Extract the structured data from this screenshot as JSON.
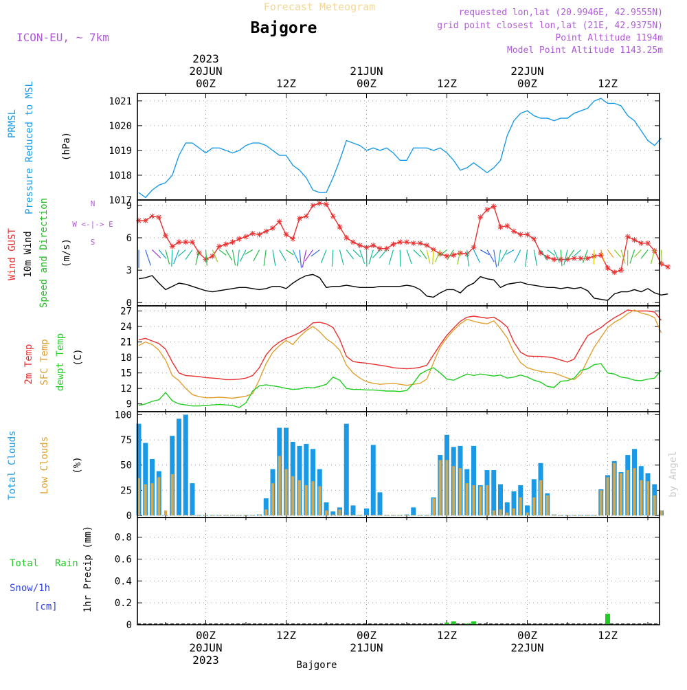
{
  "header": {
    "supertitle": "Forecast Meteogram",
    "title": "Bajgore",
    "model": "ICON-EU, ~ 7km",
    "requested": "requested lon,lat (20.9946E, 42.9555N)",
    "gridpoint": "grid point closest lon,lat (21E, 42.9375N)",
    "altitude": "Point Altitude 1194m",
    "model_altitude": "Model Point Altitude 1143.25m",
    "footer": "Bajgore",
    "credit": "by Angel"
  },
  "time_axis": {
    "top": [
      {
        "i": 10,
        "lines": [
          "2023",
          "20JUN",
          "00Z"
        ]
      },
      {
        "i": 22,
        "lines": [
          "12Z"
        ]
      },
      {
        "i": 34,
        "lines": [
          "21JUN",
          "00Z"
        ]
      },
      {
        "i": 46,
        "lines": [
          "12Z"
        ]
      },
      {
        "i": 58,
        "lines": [
          "22JUN",
          "00Z"
        ]
      },
      {
        "i": 70,
        "lines": [
          "12Z"
        ]
      }
    ],
    "bottom": [
      {
        "i": 10,
        "lines": [
          "00Z",
          "20JUN",
          "2023"
        ]
      },
      {
        "i": 22,
        "lines": [
          "12Z"
        ]
      },
      {
        "i": 34,
        "lines": [
          "00Z",
          "21JUN"
        ]
      },
      {
        "i": 46,
        "lines": [
          "12Z"
        ]
      },
      {
        "i": 58,
        "lines": [
          "00Z",
          "22JUN"
        ]
      },
      {
        "i": 70,
        "lines": [
          "12Z"
        ]
      }
    ]
  },
  "colors": {
    "pressure": "#1a9ae6",
    "gust": "#e83030",
    "wind": "#000000",
    "dir": "#22bb22",
    "temp": "#e83030",
    "sfc": "#e0a030",
    "dew": "#22cc22",
    "total_clouds": "#1a9ae6",
    "low_clouds": "#d4a850",
    "rain": "#22cc22",
    "snow": "#3344dd",
    "purple": "#b05ad8"
  },
  "panel_labels": {
    "pressure": [
      "PRMSL",
      "Pressure Reduced to MSL",
      "(hPa)"
    ],
    "wind": [
      "Wind GUST",
      "10m Wind",
      "Speed and Direction",
      "(m/s)"
    ],
    "compass": [
      "N",
      "W <-|-> E",
      "S"
    ],
    "temp": [
      "2m Temp",
      "SFC Temp",
      "dewpt Temp",
      "(C)"
    ],
    "clouds": [
      "Total Clouds",
      "Low Clouds",
      "(%)"
    ],
    "precip": [
      "Total",
      "Rain",
      "Snow/1h",
      "[cm]",
      "1hr Precip (mm)"
    ]
  },
  "chart_data": [
    {
      "type": "line",
      "panel": "pressure",
      "ylim": [
        1017,
        1021.3
      ],
      "yticks": [
        1017,
        1018,
        1019,
        1020,
        1021
      ],
      "series": [
        {
          "name": "PRMSL",
          "values": [
            1017.3,
            1017.1,
            1017.4,
            1017.6,
            1017.7,
            1018.0,
            1018.8,
            1019.3,
            1019.3,
            1019.1,
            1018.9,
            1019.1,
            1019.1,
            1019.0,
            1018.9,
            1019.0,
            1019.2,
            1019.3,
            1019.3,
            1019.2,
            1019.0,
            1018.8,
            1018.8,
            1018.4,
            1018.2,
            1017.9,
            1017.4,
            1017.3,
            1017.3,
            1017.9,
            1018.6,
            1019.4,
            1019.3,
            1019.2,
            1019.0,
            1019.1,
            1019.0,
            1019.1,
            1018.9,
            1018.6,
            1018.6,
            1019.1,
            1019.1,
            1019.1,
            1019.0,
            1019.1,
            1018.9,
            1018.6,
            1018.2,
            1018.3,
            1018.5,
            1018.3,
            1018.1,
            1018.3,
            1018.6,
            1019.6,
            1020.2,
            1020.5,
            1020.6,
            1020.4,
            1020.3,
            1020.3,
            1020.2,
            1020.3,
            1020.3,
            1020.5,
            1020.6,
            1020.7,
            1021.0,
            1021.1,
            1020.9,
            1020.9,
            1020.8,
            1020.4,
            1020.2,
            1019.8,
            1019.4,
            1019.2,
            1019.5
          ]
        }
      ]
    },
    {
      "type": "line",
      "panel": "wind",
      "ylim": [
        -0.3,
        9.5
      ],
      "yticks": [
        0,
        3,
        6,
        9
      ],
      "series": [
        {
          "name": "Wind GUST",
          "values": [
            7.6,
            7.6,
            8.0,
            7.9,
            6.2,
            5.2,
            5.6,
            5.6,
            5.6,
            4.6,
            4.0,
            4.3,
            5.2,
            5.4,
            5.6,
            5.9,
            6.1,
            6.4,
            6.3,
            6.6,
            6.9,
            7.5,
            6.3,
            5.9,
            7.8,
            8.0,
            9.0,
            9.2,
            9.1,
            8.0,
            7.0,
            6.0,
            5.6,
            5.3,
            5.1,
            5.3,
            5.0,
            5.0,
            5.4,
            5.6,
            5.6,
            5.5,
            5.5,
            5.3,
            4.9,
            4.5,
            4.3,
            4.4,
            4.6,
            4.5,
            5.1,
            7.9,
            8.6,
            8.9,
            7.0,
            7.1,
            6.6,
            6.3,
            6.3,
            5.9,
            4.6,
            4.2,
            4.0,
            4.0,
            4.0,
            4.1,
            4.1,
            4.1,
            4.3,
            4.4,
            3.2,
            2.8,
            3.0,
            6.1,
            5.8,
            5.5,
            5.5,
            4.8,
            3.6,
            3.3
          ]
        },
        {
          "name": "10m Wind",
          "values": [
            2.2,
            2.3,
            2.5,
            1.8,
            1.2,
            1.5,
            1.8,
            1.7,
            1.5,
            1.3,
            1.1,
            1.0,
            1.1,
            1.2,
            1.3,
            1.4,
            1.4,
            1.3,
            1.2,
            1.3,
            1.5,
            1.5,
            1.3,
            1.8,
            2.2,
            2.5,
            2.6,
            2.3,
            1.4,
            1.5,
            1.5,
            1.6,
            1.5,
            1.4,
            1.4,
            1.4,
            1.5,
            1.5,
            1.5,
            1.5,
            1.6,
            1.5,
            1.2,
            0.6,
            0.5,
            0.9,
            1.2,
            1.2,
            0.9,
            1.5,
            1.8,
            2.4,
            2.2,
            2.1,
            1.4,
            1.7,
            1.8,
            1.9,
            1.7,
            1.6,
            1.5,
            1.4,
            1.4,
            1.3,
            1.4,
            1.3,
            1.4,
            1.1,
            0.4,
            0.3,
            0.2,
            0.8,
            1.0,
            1.0,
            1.2,
            1.0,
            1.3,
            0.9,
            0.7,
            0.8
          ]
        }
      ]
    },
    {
      "type": "line",
      "panel": "temperature",
      "ylim": [
        7.5,
        28
      ],
      "yticks": [
        9,
        12,
        15,
        18,
        21,
        24,
        27
      ],
      "series": [
        {
          "name": "2m Temp",
          "values": [
            21.4,
            21.7,
            21.2,
            20.7,
            19.6,
            17.1,
            15.0,
            14.5,
            14.4,
            14.3,
            14.1,
            14.0,
            13.9,
            13.7,
            13.7,
            13.8,
            14.0,
            14.5,
            16.0,
            18.5,
            20.0,
            21.0,
            21.7,
            22.2,
            22.8,
            23.6,
            24.7,
            24.8,
            24.5,
            23.8,
            21.5,
            18.2,
            17.2,
            17.0,
            16.9,
            16.7,
            16.5,
            16.3,
            16.0,
            15.9,
            15.8,
            15.9,
            16.1,
            16.5,
            18.5,
            20.5,
            22.3,
            23.7,
            25.0,
            25.8,
            26.0,
            25.8,
            25.6,
            25.8,
            25.0,
            23.9,
            21.0,
            19.0,
            18.3,
            18.2,
            18.2,
            18.1,
            17.9,
            17.5,
            17.1,
            17.7,
            20.0,
            22.2,
            23.0,
            23.8,
            24.8,
            25.7,
            26.4,
            27.2,
            27.0,
            27.0,
            27.0,
            26.8,
            25.2
          ]
        },
        {
          "name": "SFC Temp",
          "values": [
            20.3,
            21.0,
            20.5,
            19.4,
            17.5,
            14.5,
            13.5,
            12.0,
            10.8,
            10.4,
            10.2,
            10.2,
            10.3,
            10.2,
            10.1,
            10.3,
            10.5,
            11.0,
            13.7,
            16.8,
            19.0,
            20.3,
            21.3,
            20.5,
            22.0,
            23.2,
            24.0,
            23.0,
            21.6,
            20.7,
            19.4,
            16.5,
            15.0,
            14.0,
            13.3,
            13.0,
            12.8,
            12.9,
            13.0,
            12.8,
            12.6,
            12.8,
            13.0,
            13.8,
            17.0,
            20.0,
            21.8,
            23.3,
            24.5,
            25.4,
            25.0,
            24.7,
            24.5,
            25.1,
            23.6,
            21.8,
            19.0,
            17.0,
            16.0,
            15.6,
            15.3,
            15.1,
            15.0,
            14.5,
            14.0,
            13.7,
            14.8,
            17.5,
            20.0,
            21.9,
            23.8,
            24.8,
            25.5,
            26.5,
            27.2,
            26.6,
            26.3,
            25.7,
            22.8
          ]
        },
        {
          "name": "dewpt Temp",
          "values": [
            8.7,
            9.0,
            9.5,
            9.8,
            11.2,
            9.6,
            9.0,
            8.8,
            8.6,
            8.6,
            8.7,
            8.8,
            8.9,
            8.8,
            8.7,
            8.3,
            9.2,
            11.5,
            12.5,
            12.7,
            12.5,
            12.3,
            12.0,
            11.8,
            11.9,
            12.2,
            12.1,
            12.4,
            12.8,
            14.2,
            13.6,
            12.0,
            11.8,
            11.8,
            11.7,
            11.7,
            11.6,
            11.5,
            11.5,
            11.4,
            11.6,
            13.0,
            14.8,
            15.5,
            16.0,
            15.0,
            13.8,
            13.6,
            14.2,
            14.8,
            14.5,
            14.8,
            14.6,
            14.4,
            14.6,
            14.0,
            14.2,
            14.6,
            14.2,
            13.6,
            13.2,
            12.4,
            12.2,
            13.4,
            13.5,
            14.0,
            15.5,
            15.8,
            16.6,
            16.8,
            15.0,
            14.8,
            14.2,
            14.0,
            13.6,
            13.5,
            13.8,
            14.0,
            15.5
          ]
        }
      ]
    },
    {
      "type": "bar",
      "panel": "clouds",
      "ylim": [
        -2,
        103
      ],
      "yticks": [
        0,
        25,
        50,
        75,
        100
      ],
      "series": [
        {
          "name": "Total Clouds",
          "values": [
            91,
            72,
            56,
            44,
            0,
            79,
            96,
            100,
            32,
            0,
            0,
            0,
            0,
            0,
            0,
            0,
            0,
            0,
            1,
            17,
            46,
            87,
            87,
            73,
            69,
            71,
            66,
            46,
            13,
            4,
            8,
            91,
            10,
            0,
            7,
            70,
            23,
            0,
            0,
            0,
            1,
            8,
            0,
            0,
            18,
            60,
            80,
            68,
            69,
            46,
            69,
            30,
            45,
            45,
            31,
            13,
            24,
            30,
            10,
            36,
            52,
            22,
            1,
            0,
            0,
            0,
            0,
            0,
            0,
            26,
            40,
            54,
            43,
            60,
            66,
            49,
            42,
            31,
            5
          ]
        },
        {
          "name": "Low Clouds",
          "values": [
            37,
            31,
            32,
            38,
            5,
            41,
            0,
            0,
            0,
            0,
            0,
            0,
            0,
            0,
            0,
            0,
            0,
            0,
            1,
            6,
            32,
            59,
            46,
            39,
            35,
            30,
            34,
            29,
            5,
            1,
            6,
            0,
            0,
            0,
            0,
            0,
            0,
            0,
            0,
            0,
            0,
            0,
            0,
            0,
            17,
            55,
            55,
            49,
            47,
            32,
            30,
            29,
            30,
            5,
            6,
            3,
            7,
            18,
            3,
            18,
            35,
            20,
            1,
            0,
            0,
            0,
            0,
            0,
            0,
            25,
            38,
            52,
            42,
            45,
            47,
            35,
            34,
            20,
            5
          ]
        }
      ]
    },
    {
      "type": "bar",
      "panel": "precip",
      "ylim": [
        0,
        0.98
      ],
      "yticks": [
        0,
        0.2,
        0.4,
        0.6,
        0.8
      ],
      "series": [
        {
          "name": "Total Rain",
          "values": [
            0,
            0,
            0,
            0,
            0,
            0,
            0,
            0,
            0,
            0,
            0,
            0,
            0,
            0,
            0,
            0,
            0,
            0,
            0,
            0,
            0,
            0,
            0,
            0,
            0,
            0,
            0,
            0,
            0,
            0,
            0,
            0,
            0,
            0,
            0,
            0,
            0,
            0,
            0,
            0,
            0,
            0,
            0,
            0,
            0,
            0,
            0.02,
            0.03,
            0,
            0.01,
            0.03,
            0,
            0,
            0,
            0,
            0,
            0,
            0,
            0,
            0,
            0,
            0,
            0,
            0,
            0,
            0,
            0,
            0,
            0,
            0,
            0.1,
            0,
            0,
            0,
            0,
            0,
            0,
            0,
            0
          ]
        }
      ]
    }
  ]
}
